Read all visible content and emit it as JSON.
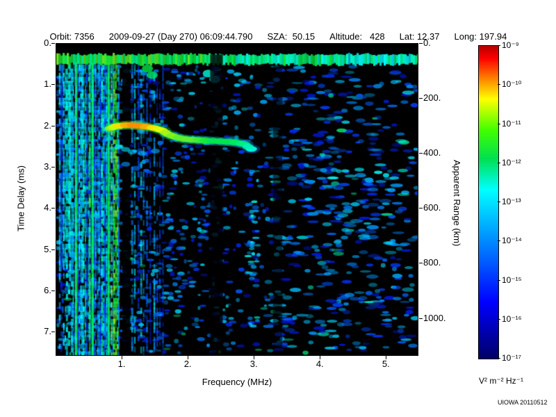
{
  "header": {
    "fields": [
      {
        "text": "Orbit: 7356"
      },
      {
        "text": "2009-09-27 (Day 270) 06:09:44.790"
      },
      {
        "text": "SZA:  50.15"
      },
      {
        "text": "Altitude:   428"
      },
      {
        "text": "Lat: 12.37"
      },
      {
        "text": "Long: 197.94"
      }
    ]
  },
  "credit": "UIOWA 20110512",
  "chart_data": {
    "type": "heatmap",
    "xlabel": "Frequency (MHz)",
    "ylabel_left": "Time Delay (ms)",
    "ylabel_right": "Apparent Range (km)",
    "x_range_mhz": [
      0,
      5.47
    ],
    "y_range_ms": [
      0,
      7.55
    ],
    "km_per_ms": 150,
    "x_ticks": [
      {
        "value": 1,
        "label": "1."
      },
      {
        "value": 2,
        "label": "2."
      },
      {
        "value": 3,
        "label": "3."
      },
      {
        "value": 4,
        "label": "4."
      },
      {
        "value": 5,
        "label": "5."
      }
    ],
    "y_ticks": [
      {
        "value": 0,
        "label": "0."
      },
      {
        "value": 1,
        "label": "1."
      },
      {
        "value": 2,
        "label": "2."
      },
      {
        "value": 3,
        "label": "3."
      },
      {
        "value": 4,
        "label": "4."
      },
      {
        "value": 5,
        "label": "5."
      },
      {
        "value": 6,
        "label": "6."
      },
      {
        "value": 7,
        "label": "7."
      }
    ],
    "right_ticks": [
      {
        "value": 0,
        "label": "0."
      },
      {
        "value": 200,
        "label": "200."
      },
      {
        "value": 400,
        "label": "400."
      },
      {
        "value": 600,
        "label": "600."
      },
      {
        "value": 800,
        "label": "800."
      },
      {
        "value": 1000,
        "label": "1000."
      }
    ],
    "colorbar": {
      "unit_label": "V² m⁻² Hz⁻¹",
      "ticks": [
        "10⁻⁹",
        "10⁻¹⁰",
        "10⁻¹¹",
        "10⁻¹²",
        "10⁻¹³",
        "10⁻¹⁴",
        "10⁻¹⁵",
        "10⁻¹⁶",
        "10⁻¹⁷"
      ],
      "gradient": [
        {
          "pos": 0.0,
          "color": "#b40000"
        },
        {
          "pos": 0.04,
          "color": "#ff0000"
        },
        {
          "pos": 0.11,
          "color": "#ff8c00"
        },
        {
          "pos": 0.17,
          "color": "#ffff00"
        },
        {
          "pos": 0.27,
          "color": "#40ff00"
        },
        {
          "pos": 0.36,
          "color": "#00e050"
        },
        {
          "pos": 0.46,
          "color": "#00ffff"
        },
        {
          "pos": 0.58,
          "color": "#00aaff"
        },
        {
          "pos": 0.7,
          "color": "#0055ff"
        },
        {
          "pos": 0.82,
          "color": "#0000ff"
        },
        {
          "pos": 1.0,
          "color": "#000066"
        }
      ]
    },
    "features": {
      "background_color": "#000000",
      "plasma_line_band": {
        "delay_ms": 0.38,
        "thickness_ms": 0.2
      },
      "low_freq_striations": {
        "f_min": 0.05,
        "f_max": 0.95,
        "count": 40
      },
      "bright_striations_mhz": [
        0.3,
        0.55,
        0.79
      ],
      "mid_striations": {
        "f_min": 1.14,
        "f_max": 1.62,
        "count": 11
      },
      "attenuation_gaps": [
        {
          "f": [
            1.0,
            1.12
          ],
          "from_ms": 0.55,
          "alpha": 0.9
        },
        {
          "f": [
            2.33,
            2.52
          ],
          "from_ms": 0.26,
          "alpha": 0.8
        },
        {
          "f": [
            3.28,
            3.42
          ],
          "from_ms": 0.5,
          "alpha": 0.55
        }
      ],
      "echo_trace": [
        [
          0.82,
          2.05,
          0.72
        ],
        [
          0.9,
          2.0,
          0.8
        ],
        [
          1.0,
          1.98,
          0.85
        ],
        [
          1.1,
          1.97,
          0.88
        ],
        [
          1.2,
          1.98,
          0.9
        ],
        [
          1.3,
          2.0,
          0.88
        ],
        [
          1.4,
          2.02,
          0.85
        ],
        [
          1.5,
          2.05,
          0.8
        ],
        [
          1.6,
          2.1,
          0.76
        ],
        [
          1.7,
          2.2,
          0.72
        ],
        [
          1.8,
          2.26,
          0.7
        ],
        [
          1.9,
          2.3,
          0.68
        ],
        [
          2.0,
          2.32,
          0.7
        ],
        [
          2.1,
          2.33,
          0.68
        ],
        [
          2.2,
          2.34,
          0.66
        ],
        [
          2.3,
          2.35,
          0.62
        ],
        [
          2.42,
          2.36,
          0.6
        ],
        [
          2.55,
          2.37,
          0.62
        ],
        [
          2.65,
          2.38,
          0.6
        ],
        [
          2.75,
          2.4,
          0.58
        ],
        [
          2.85,
          2.44,
          0.55
        ],
        [
          2.95,
          2.55,
          0.48
        ]
      ],
      "sub_trace": [
        [
          0.95,
          2.5,
          0.45
        ],
        [
          1.05,
          2.56,
          0.42
        ],
        [
          1.15,
          2.62,
          0.4
        ],
        [
          1.3,
          2.66,
          0.38
        ],
        [
          1.5,
          2.6,
          0.36
        ],
        [
          1.05,
          2.92,
          0.34
        ],
        [
          1.2,
          3.02,
          0.3
        ]
      ],
      "below_band_blobs": [
        [
          1.38,
          0.6,
          0.62
        ],
        [
          1.45,
          0.76,
          0.58
        ],
        [
          2.3,
          0.72,
          0.48
        ],
        [
          2.4,
          0.86,
          0.42
        ]
      ],
      "diffuse_patch": {
        "f": [
          4.0,
          5.3
        ],
        "delay": [
          3.05,
          3.45
        ]
      },
      "diffuse_patch2": {
        "f": [
          4.2,
          5.3
        ],
        "delay": [
          4.5,
          4.9
        ]
      }
    }
  }
}
